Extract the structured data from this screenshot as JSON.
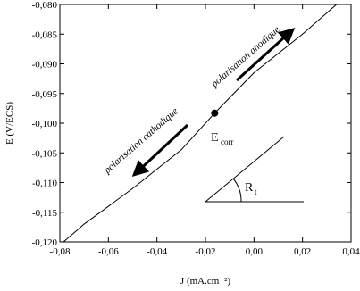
{
  "chart_data": {
    "type": "line",
    "xlabel": "J (mA.cm⁻²)",
    "ylabel": "E (V/ECS)",
    "x": [
      -0.0785,
      -0.07,
      -0.05,
      -0.03,
      -0.0162,
      0,
      0.02,
      0.034
    ],
    "series": [
      {
        "color": "#000000",
        "values": [
          -0.12,
          -0.117,
          -0.111,
          -0.1045,
          -0.0983,
          -0.0915,
          -0.085,
          -0.08
        ]
      }
    ],
    "marker_point": {
      "x": -0.0162,
      "y": -0.0983
    },
    "annotations": [
      "polarisation anodique",
      "polarisation cathodique"
    ],
    "ecorr_label": {
      "text": "E",
      "sub": "corr"
    },
    "rt_label": {
      "text": "R",
      "sub": "t"
    },
    "xlim": [
      -0.08,
      0.04
    ],
    "xticks": [
      {
        "value": -0.08,
        "label": "-0,08"
      },
      {
        "value": -0.06,
        "label": "-0,06"
      },
      {
        "value": -0.04,
        "label": "-0,04"
      },
      {
        "value": -0.02,
        "label": "-0,02"
      },
      {
        "value": 0,
        "label": "0,00"
      },
      {
        "value": 0.02,
        "label": "0,02"
      },
      {
        "value": 0.04,
        "label": "0,04"
      }
    ],
    "ylim": [
      -0.12,
      -0.08
    ],
    "yticks": [
      {
        "value": -0.12,
        "label": "-0,120"
      },
      {
        "value": -0.115,
        "label": "-0,115"
      },
      {
        "value": -0.11,
        "label": "-0,110"
      },
      {
        "value": -0.105,
        "label": "-0,105"
      },
      {
        "value": -0.1,
        "label": "-0,100"
      },
      {
        "value": -0.095,
        "label": "-0,095"
      },
      {
        "value": -0.09,
        "label": "-0,090"
      },
      {
        "value": -0.085,
        "label": "-0,085"
      },
      {
        "value": -0.08,
        "label": "-0,080"
      }
    ],
    "grid": false
  }
}
